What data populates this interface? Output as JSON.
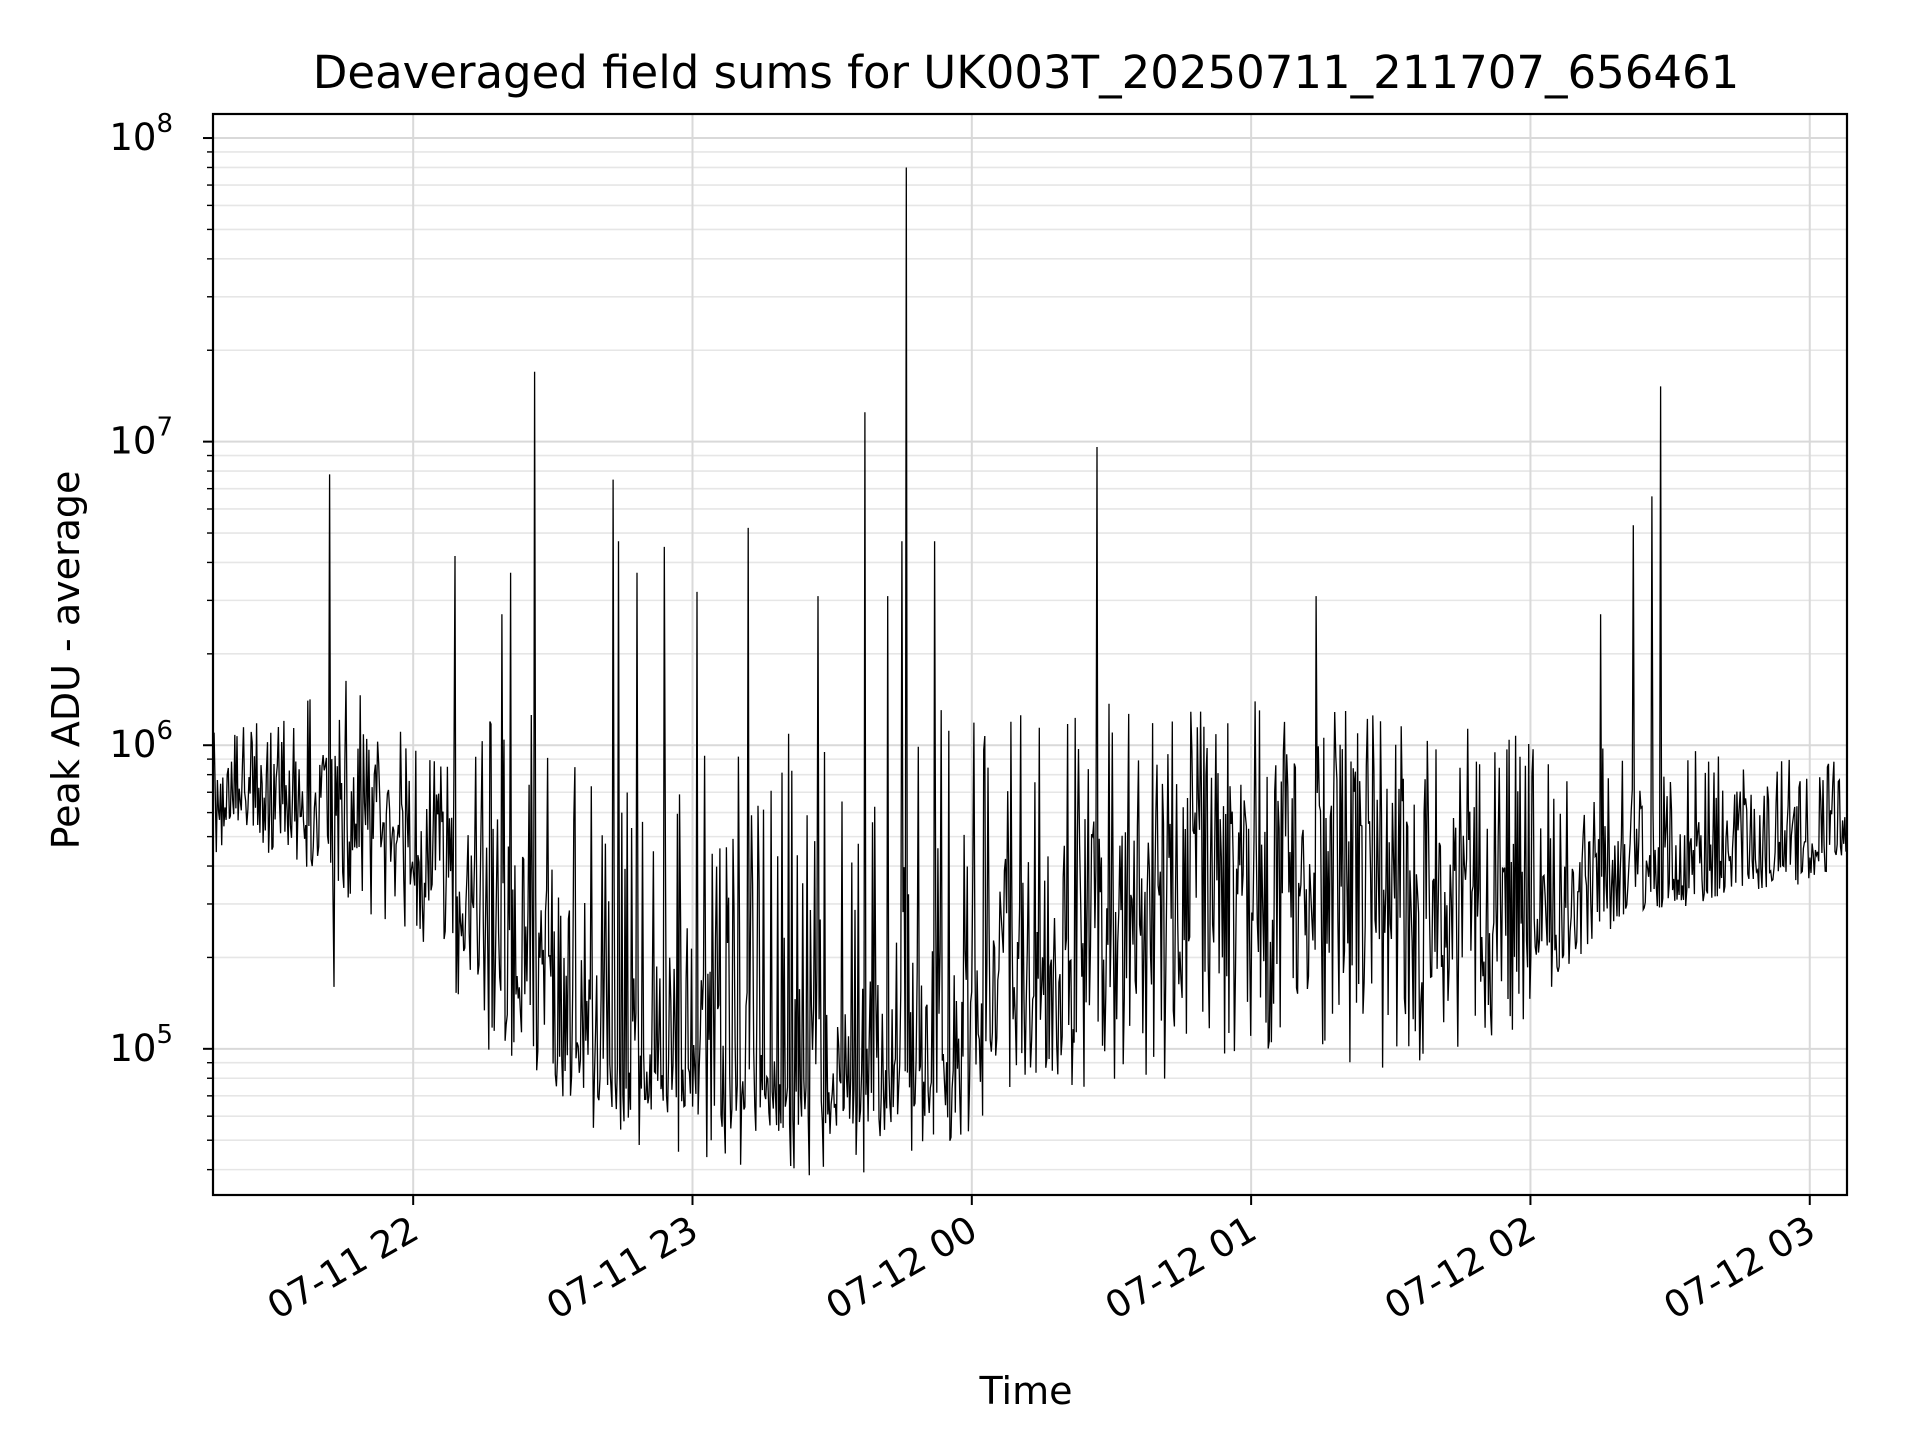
{
  "chart_data": {
    "type": "line",
    "title": "Deaveraged field sums for UK003T_20250711_211707_656461",
    "xlabel": "Time",
    "ylabel": "Peak ADU - average",
    "yscale": "log",
    "ylim": [
      33000,
      120000000
    ],
    "xlim": [
      "07-11 21:17",
      "07-12 03:08"
    ],
    "grid": true,
    "line_color": "#000000",
    "x_ticks": [
      "07-11 22",
      "07-11 23",
      "07-12 00",
      "07-12 01",
      "07-12 02",
      "07-12 03"
    ],
    "y_ticks": [
      {
        "base": "10",
        "exp": "5",
        "value": 100000
      },
      {
        "base": "10",
        "exp": "6",
        "value": 1000000
      },
      {
        "base": "10",
        "exp": "7",
        "value": 10000000
      },
      {
        "base": "10",
        "exp": "8",
        "value": 100000000
      }
    ],
    "series": [
      {
        "x": [
          "07-11 21:17",
          "07-11 21:25",
          "07-11 21:35",
          "07-11 21:45",
          "07-11 21:55",
          "07-11 22:05",
          "07-11 22:15",
          "07-11 22:25",
          "07-11 22:35",
          "07-11 22:45",
          "07-11 22:55",
          "07-11 23:05",
          "07-11 23:15",
          "07-11 23:25",
          "07-11 23:35",
          "07-11 23:45",
          "07-11 23:55",
          "07-12 00:05",
          "07-12 00:15",
          "07-12 00:25",
          "07-12 00:35",
          "07-12 00:45",
          "07-12 00:55",
          "07-12 01:05",
          "07-12 01:15",
          "07-12 01:25",
          "07-12 01:35",
          "07-12 01:45",
          "07-12 01:55",
          "07-12 02:05",
          "07-12 02:15",
          "07-12 02:25",
          "07-12 02:35",
          "07-12 02:45",
          "07-12 02:55",
          "07-12 03:08"
        ],
        "y": [
          650000,
          700000,
          620000,
          600000,
          550000,
          420000,
          260000,
          180000,
          110000,
          100000,
          95000,
          85000,
          80000,
          78000,
          82000,
          90000,
          100000,
          140000,
          200000,
          250000,
          300000,
          350000,
          380000,
          400000,
          400000,
          380000,
          360000,
          320000,
          280000,
          260000,
          330000,
          380000,
          400000,
          420000,
          450000,
          470000
        ],
        "y_max": [
          1100000,
          1200000,
          1300000,
          1900000,
          1200000,
          900000,
          1500000,
          1300000,
          900000,
          1000000,
          1100000,
          1200000,
          1100000,
          1300000,
          1200000,
          1200000,
          1500000,
          1500000,
          1500000,
          1500000,
          1400000,
          1400000,
          1400000,
          1400000,
          1300000,
          1300000,
          1200000,
          1200000,
          1100000,
          1000000,
          1000000,
          1000000,
          1000000,
          900000,
          900000,
          900000
        ],
        "y_min": [
          420000,
          450000,
          400000,
          300000,
          260000,
          160000,
          100000,
          80000,
          65000,
          60000,
          60000,
          55000,
          52000,
          55000,
          55000,
          60000,
          60000,
          65000,
          70000,
          75000,
          75000,
          80000,
          80000,
          85000,
          85000,
          80000,
          85000,
          100000,
          110000,
          150000,
          230000,
          280000,
          310000,
          320000,
          340000,
          380000
        ],
        "spikes": [
          {
            "x": "07-11 21:42",
            "y": 7800000
          },
          {
            "x": "07-11 21:43",
            "y": 160000
          },
          {
            "x": "07-11 22:09",
            "y": 4200000
          },
          {
            "x": "07-11 22:19",
            "y": 2700000
          },
          {
            "x": "07-11 22:21",
            "y": 3700000
          },
          {
            "x": "07-11 22:26",
            "y": 17000000
          },
          {
            "x": "07-11 22:43",
            "y": 7500000
          },
          {
            "x": "07-11 22:44",
            "y": 4700000
          },
          {
            "x": "07-11 22:48",
            "y": 3700000
          },
          {
            "x": "07-11 22:54",
            "y": 4500000
          },
          {
            "x": "07-11 23:01",
            "y": 3200000
          },
          {
            "x": "07-11 23:12",
            "y": 5200000
          },
          {
            "x": "07-11 23:27",
            "y": 3100000
          },
          {
            "x": "07-11 23:37",
            "y": 12500000
          },
          {
            "x": "07-11 23:42",
            "y": 3100000
          },
          {
            "x": "07-11 23:45",
            "y": 4700000
          },
          {
            "x": "07-11 23:46",
            "y": 80000000
          },
          {
            "x": "07-11 23:52",
            "y": 4700000
          },
          {
            "x": "07-12 00:27",
            "y": 9600000
          },
          {
            "x": "07-12 01:14",
            "y": 3100000
          },
          {
            "x": "07-12 02:15",
            "y": 2700000
          },
          {
            "x": "07-12 02:22",
            "y": 5300000
          },
          {
            "x": "07-12 02:26",
            "y": 6600000
          },
          {
            "x": "07-12 02:28",
            "y": 15200000
          }
        ]
      }
    ]
  }
}
